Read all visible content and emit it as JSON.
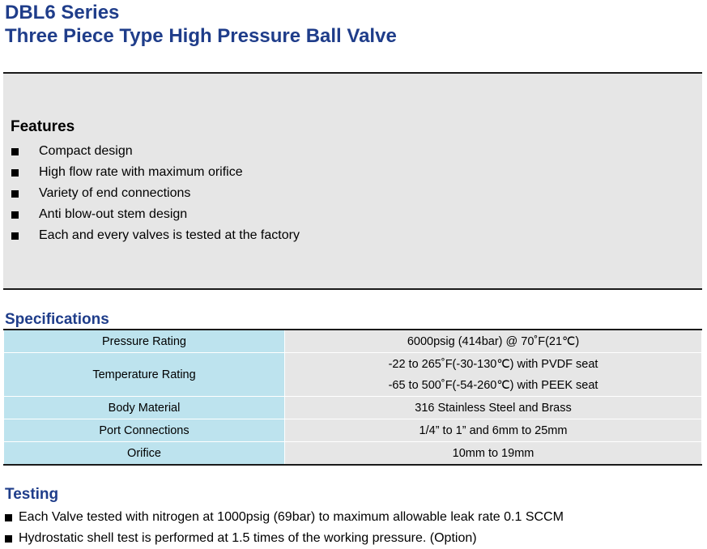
{
  "header": {
    "series": "DBL6 Series",
    "product": "Three Piece Type High Pressure Ball Valve"
  },
  "features": {
    "heading": "Features",
    "items": [
      "Compact design",
      "High flow rate with maximum orifice",
      "Variety of end connections",
      "Anti blow-out stem design",
      "Each and every valves is tested at the factory"
    ]
  },
  "specifications": {
    "heading": "Specifications",
    "rows": [
      {
        "label": "Pressure Rating",
        "values": [
          "6000psig (414bar) @ 70˚F(21℃)"
        ]
      },
      {
        "label": "Temperature Rating",
        "values": [
          "-22 to 265˚F(-30-130℃) with PVDF seat",
          "-65 to 500˚F(-54-260℃) with PEEK seat"
        ]
      },
      {
        "label": "Body Material",
        "values": [
          "316 Stainless Steel and Brass"
        ]
      },
      {
        "label": "Port Connections",
        "values": [
          "1/4” to 1” and 6mm to 25mm"
        ]
      },
      {
        "label": "Orifice",
        "values": [
          "10mm to 19mm"
        ]
      }
    ]
  },
  "testing": {
    "heading": "Testing",
    "items": [
      "Each Valve tested with nitrogen at 1000psig (69bar) to maximum allowable leak rate 0.1 SCCM",
      "Hydrostatic shell test is performed at 1.5 times of the working pressure. (Option)"
    ]
  },
  "colors": {
    "title_blue": "#1f3d8a",
    "label_cell": "#bde3ee",
    "value_cell": "#e6e6e6",
    "features_bg": "#e6e6e6"
  }
}
